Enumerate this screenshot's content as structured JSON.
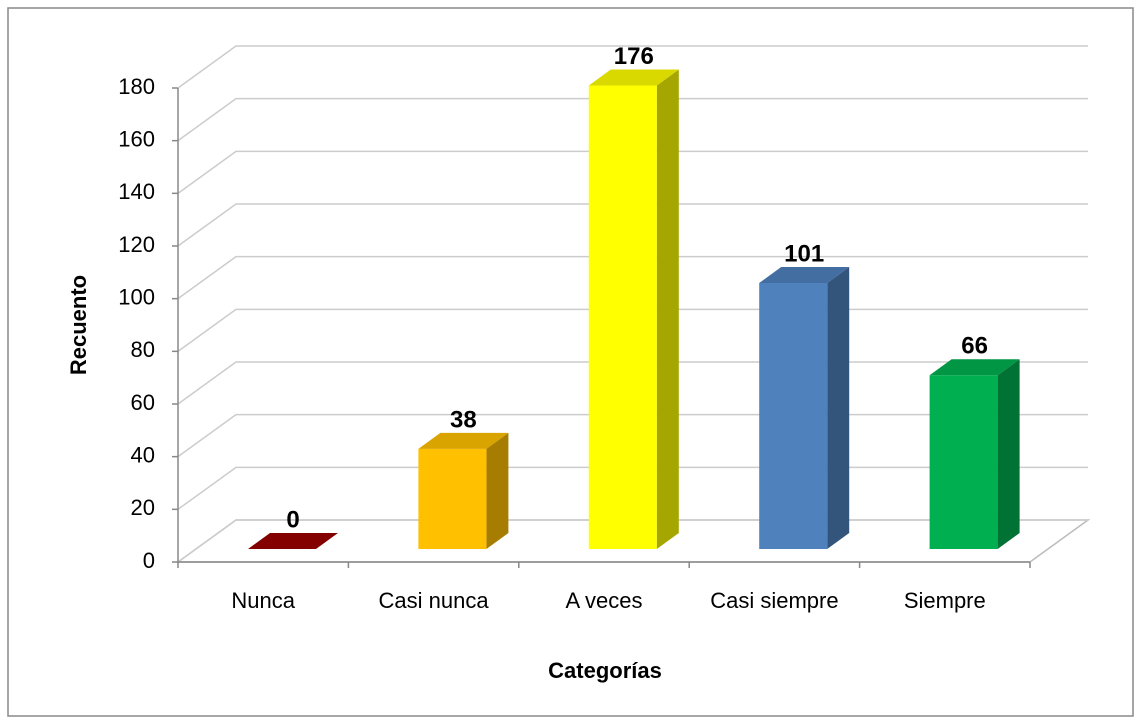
{
  "chart_data": {
    "type": "bar3d",
    "categories": [
      "Nunca",
      "Casi nunca",
      "A veces",
      "Casi siempre",
      "Siempre"
    ],
    "values": [
      0,
      38,
      176,
      101,
      66
    ],
    "colors": [
      "#9b0000",
      "#ffc000",
      "#ffff00",
      "#4f81bd",
      "#00b050"
    ],
    "xlabel": "Categorías",
    "ylabel": "Recuento",
    "ylim": [
      0,
      180
    ],
    "yticks": [
      0,
      20,
      40,
      60,
      80,
      100,
      120,
      140,
      160,
      180
    ],
    "grid": true
  }
}
